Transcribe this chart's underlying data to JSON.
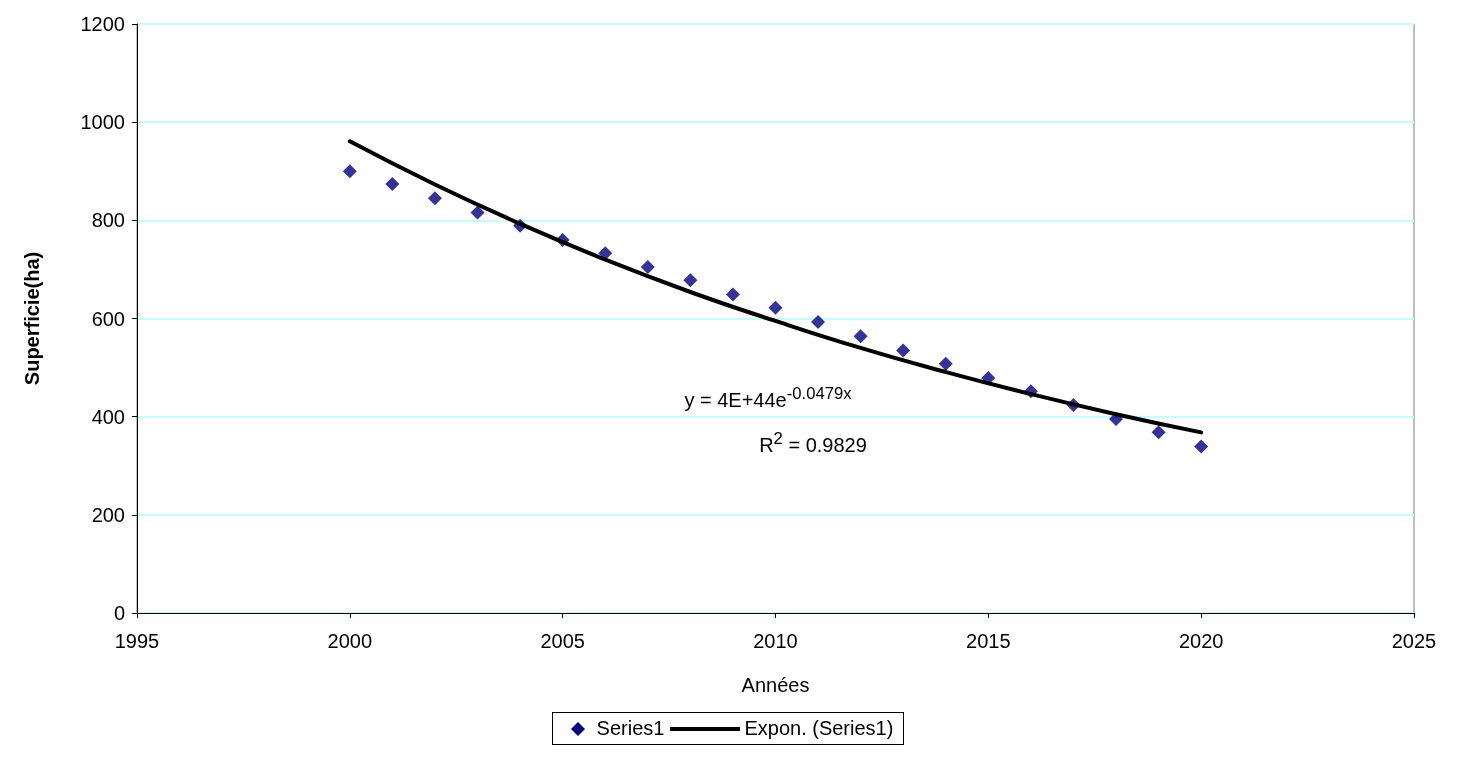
{
  "chart_data": {
    "type": "scatter",
    "xlabel": "Années",
    "ylabel": "Superficie(ha)",
    "xlim": [
      1995,
      2025
    ],
    "xticks": [
      1995,
      2000,
      2005,
      2010,
      2015,
      2020,
      2025
    ],
    "ylim": [
      0,
      1200
    ],
    "yticks": [
      0,
      200,
      400,
      600,
      800,
      1000,
      1200
    ],
    "grid": "y",
    "legend": "bottom",
    "series": [
      {
        "name": "Series1",
        "color": "#000080",
        "marker": "diamond",
        "x": [
          2000,
          2001,
          2002,
          2003,
          2004,
          2005,
          2006,
          2007,
          2008,
          2009,
          2010,
          2011,
          2012,
          2013,
          2014,
          2015,
          2016,
          2017,
          2018,
          2019,
          2020
        ],
        "values": [
          900,
          874,
          845,
          816,
          789,
          760,
          733,
          705,
          678,
          649,
          622,
          593,
          564,
          535,
          508,
          479,
          452,
          424,
          395,
          368,
          339
        ]
      },
      {
        "name": "Expon. (Series1)",
        "type": "line",
        "color": "#000000",
        "marker": "none",
        "x": [
          2000,
          2002,
          2004,
          2006,
          2008,
          2010,
          2012,
          2014,
          2016,
          2018,
          2020
        ],
        "values": [
          961,
          873,
          793,
          720,
          654,
          595,
          540,
          491,
          446,
          405,
          368
        ]
      }
    ],
    "annotations": [
      "y = 4E+44e$^{-0.0479x}$",
      "R$^{2}$ = 0.9829"
    ]
  }
}
